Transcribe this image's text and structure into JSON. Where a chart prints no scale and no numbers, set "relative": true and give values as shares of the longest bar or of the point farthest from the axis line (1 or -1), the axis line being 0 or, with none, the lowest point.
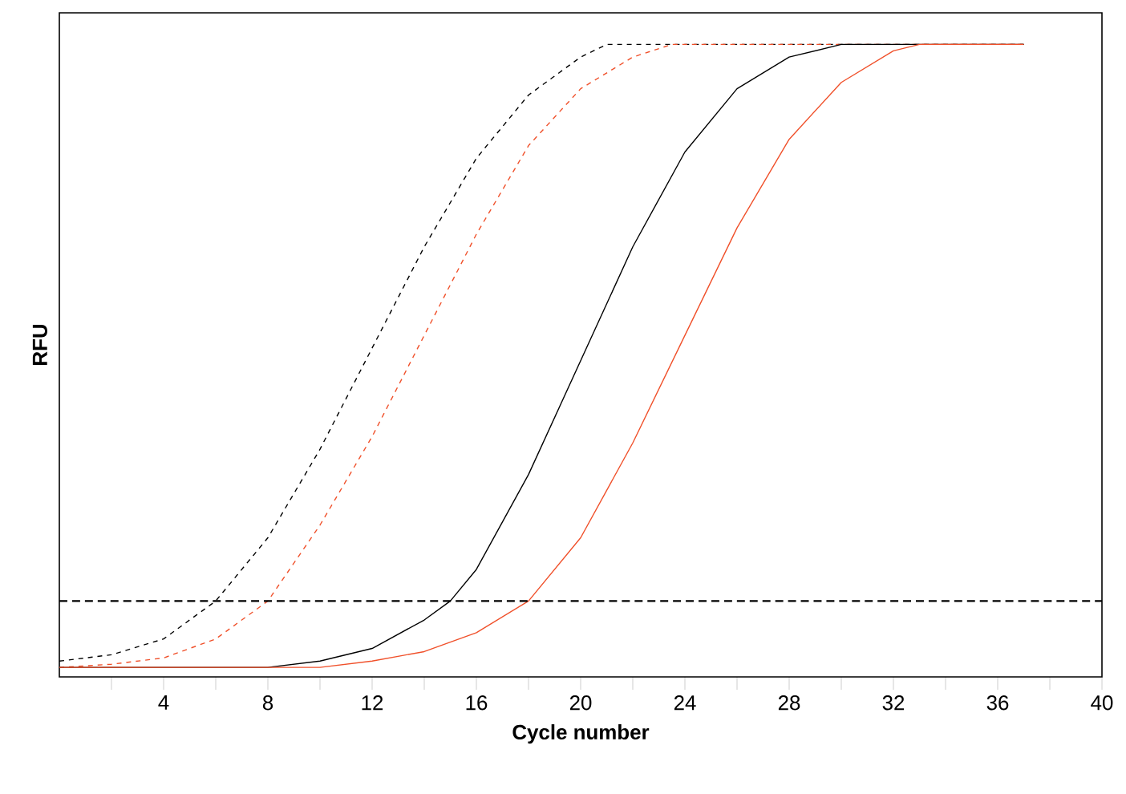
{
  "chart_data": {
    "type": "line",
    "xlabel": "Cycle number",
    "ylabel": "RFU",
    "relative": true,
    "xlim": [
      0,
      40
    ],
    "xticks": [
      {
        "value": 2,
        "label": null
      },
      4,
      {
        "value": 6,
        "label": null
      },
      8,
      {
        "value": 10,
        "label": null
      },
      12,
      {
        "value": 14,
        "label": null
      },
      16,
      {
        "value": 18,
        "label": null
      },
      20,
      {
        "value": 22,
        "label": null
      },
      24,
      {
        "value": 26,
        "label": null
      },
      28,
      {
        "value": 30,
        "label": null
      },
      32,
      {
        "value": 34,
        "label": null
      },
      36,
      {
        "value": 38,
        "label": null
      },
      40
    ],
    "tick_labels": "x",
    "grid": false,
    "marker": "none",
    "series": [
      {
        "color": "#000000",
        "line_style": "dashed",
        "x": [
          0,
          2,
          4,
          6,
          8,
          10,
          12,
          14,
          16,
          18,
          20,
          21,
          37
        ],
        "values": [
          0.025,
          0.035,
          0.06,
          0.12,
          0.22,
          0.36,
          0.52,
          0.68,
          0.82,
          0.92,
          0.98,
          1.0,
          1.0
        ]
      },
      {
        "color": "#f0502a",
        "line_style": "dashed",
        "x": [
          0,
          2,
          4,
          6,
          8,
          10,
          12,
          14,
          16,
          18,
          20,
          22,
          23.5,
          37
        ],
        "values": [
          0.015,
          0.02,
          0.03,
          0.06,
          0.12,
          0.24,
          0.38,
          0.54,
          0.7,
          0.84,
          0.93,
          0.98,
          1.0,
          1.0
        ]
      },
      {
        "color": "#000000",
        "line_style": "solid",
        "x": [
          0,
          8,
          10,
          12,
          14,
          15,
          16,
          18,
          20,
          22,
          24,
          26,
          28,
          30,
          37
        ],
        "values": [
          0.015,
          0.015,
          0.025,
          0.045,
          0.09,
          0.12,
          0.17,
          0.32,
          0.5,
          0.68,
          0.83,
          0.93,
          0.98,
          1.0,
          1.0
        ]
      },
      {
        "color": "#f0502a",
        "line_style": "solid",
        "x": [
          0,
          10,
          12,
          14,
          16,
          18,
          20,
          22,
          24,
          26,
          28,
          30,
          32,
          33,
          37
        ],
        "values": [
          0.015,
          0.015,
          0.025,
          0.04,
          0.07,
          0.12,
          0.22,
          0.37,
          0.54,
          0.71,
          0.85,
          0.94,
          0.99,
          1.0,
          1.0
        ]
      }
    ],
    "ref_lines": [
      {
        "axis": "y",
        "value": 0.12,
        "color": "#000000",
        "line_style": "dashed"
      }
    ]
  }
}
